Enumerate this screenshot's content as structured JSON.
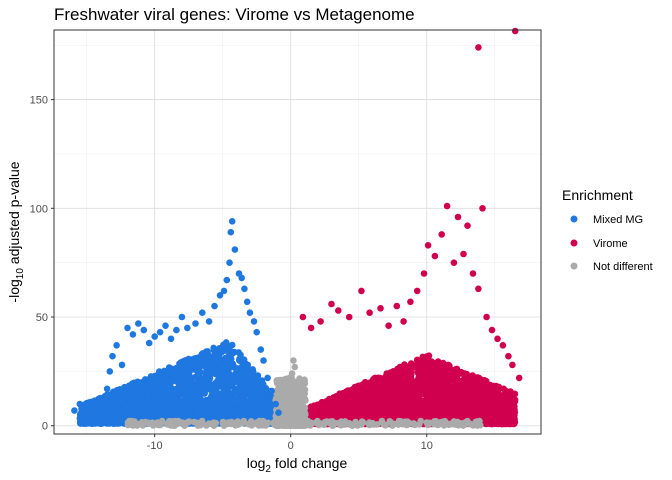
{
  "chart_data": {
    "type": "scatter",
    "title": "Freshwater viral genes: Virome vs Metagenome",
    "xlabel": {
      "prefix": "log",
      "sub": "2",
      "suffix": " fold change"
    },
    "ylabel": {
      "prefix": "-log",
      "sub": "10",
      "suffix": " adjusted p-value"
    },
    "xlim": [
      -17.4,
      18.4
    ],
    "ylim": [
      -3.8,
      182
    ],
    "x_ticks": [
      -10,
      0,
      10
    ],
    "y_ticks": [
      0,
      50,
      100,
      150
    ],
    "grid": true,
    "legend": {
      "title": "Enrichment",
      "position": "right",
      "entries": [
        "Mixed MG",
        "Virome",
        "Not different"
      ]
    },
    "colors": {
      "Mixed MG": "#1f77e0",
      "Virome": "#d0004f",
      "Not different": "#aaaaaa"
    },
    "series": [
      {
        "name": "Mixed MG",
        "points": [
          [
            -15.9,
            7
          ],
          [
            -15.5,
            10
          ],
          [
            -15.0,
            5
          ],
          [
            -14.6,
            8
          ],
          [
            -14.2,
            9
          ],
          [
            -13.8,
            11
          ],
          [
            -13.5,
            17
          ],
          [
            -13.3,
            25
          ],
          [
            -13.1,
            32
          ],
          [
            -12.8,
            37
          ],
          [
            -12.4,
            28
          ],
          [
            -12.0,
            45
          ],
          [
            -11.6,
            42
          ],
          [
            -11.2,
            47
          ],
          [
            -10.8,
            44
          ],
          [
            -10.4,
            38
          ],
          [
            -10.0,
            41
          ],
          [
            -9.6,
            43
          ],
          [
            -9.2,
            46
          ],
          [
            -8.8,
            40
          ],
          [
            -8.4,
            44
          ],
          [
            -8.0,
            50
          ],
          [
            -7.6,
            45
          ],
          [
            -7.0,
            47
          ],
          [
            -6.5,
            52
          ],
          [
            -6.0,
            48
          ],
          [
            -5.6,
            55
          ],
          [
            -5.2,
            60
          ],
          [
            -4.9,
            62
          ],
          [
            -4.7,
            67
          ],
          [
            -4.5,
            75
          ],
          [
            -4.4,
            89
          ],
          [
            -4.3,
            94
          ],
          [
            -4.1,
            81
          ],
          [
            -3.8,
            70
          ],
          [
            -3.6,
            68
          ],
          [
            -3.4,
            63
          ],
          [
            -3.2,
            57
          ],
          [
            -3.0,
            52
          ],
          [
            -2.7,
            48
          ],
          [
            -2.5,
            43
          ],
          [
            -2.2,
            35
          ],
          [
            -2.0,
            30
          ],
          [
            -1.7,
            22
          ],
          [
            -1.4,
            16
          ],
          [
            -1.1,
            10
          ],
          [
            -0.9,
            6
          ]
        ],
        "cloud": {
          "x_range": [
            -15.5,
            -0.8
          ],
          "y_range": [
            0.5,
            30
          ],
          "density": "dense"
        }
      },
      {
        "name": "Virome",
        "points": [
          [
            0.9,
            50
          ],
          [
            1.5,
            45
          ],
          [
            2.2,
            48
          ],
          [
            3.0,
            56
          ],
          [
            3.5,
            53
          ],
          [
            4.3,
            50
          ],
          [
            5.2,
            62
          ],
          [
            5.8,
            52
          ],
          [
            6.6,
            54
          ],
          [
            7.2,
            46
          ],
          [
            7.8,
            55
          ],
          [
            8.3,
            48
          ],
          [
            8.8,
            57
          ],
          [
            9.3,
            62
          ],
          [
            9.8,
            70
          ],
          [
            10.1,
            83
          ],
          [
            10.6,
            78
          ],
          [
            11.1,
            88
          ],
          [
            11.5,
            101
          ],
          [
            12.0,
            75
          ],
          [
            12.3,
            96
          ],
          [
            12.7,
            79
          ],
          [
            13.0,
            92
          ],
          [
            13.4,
            70
          ],
          [
            13.8,
            63
          ],
          [
            14.1,
            100
          ],
          [
            14.4,
            50
          ],
          [
            14.8,
            44
          ],
          [
            15.2,
            40
          ],
          [
            15.6,
            37
          ],
          [
            16.0,
            32
          ],
          [
            16.3,
            28
          ],
          [
            16.8,
            22
          ],
          [
            13.8,
            174
          ],
          [
            16.5,
            182
          ]
        ],
        "cloud": {
          "x_range": [
            0.8,
            16.5
          ],
          "y_range": [
            0.5,
            30
          ],
          "density": "dense"
        }
      },
      {
        "name": "Not different",
        "points": [
          [
            0.2,
            30
          ],
          [
            0.3,
            27
          ],
          [
            0.1,
            24
          ],
          [
            -0.1,
            22
          ],
          [
            0.4,
            20
          ],
          [
            -0.2,
            18
          ],
          [
            0.3,
            15
          ],
          [
            -0.3,
            13
          ],
          [
            0.5,
            10
          ],
          [
            -0.5,
            8
          ],
          [
            0.6,
            6
          ],
          [
            1.2,
            2
          ],
          [
            2.5,
            1.5
          ],
          [
            4.0,
            2
          ],
          [
            6.0,
            1
          ],
          [
            8.0,
            2
          ],
          [
            10.0,
            1.5
          ],
          [
            12.0,
            2
          ],
          [
            13.8,
            2
          ],
          [
            -2.0,
            2
          ],
          [
            -4.0,
            1.5
          ],
          [
            -6.0,
            1
          ],
          [
            -8.0,
            1.5
          ],
          [
            -10.0,
            1
          ]
        ],
        "cloud": {
          "x_range": [
            -1.2,
            1.2
          ],
          "y_range": [
            0,
            20
          ],
          "density": "dense"
        }
      }
    ]
  }
}
